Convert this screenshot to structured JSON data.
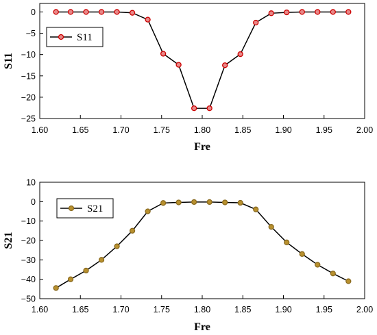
{
  "chart_data": [
    {
      "type": "line",
      "xlabel": "Fre",
      "ylabel": "S11",
      "xlim": [
        1.6,
        2.0
      ],
      "ylim": [
        -25,
        2
      ],
      "xticks": [
        "1.60",
        "1.65",
        "1.70",
        "1.75",
        "1.80",
        "1.85",
        "1.90",
        "1.95",
        "2.00"
      ],
      "yticks": [
        "0",
        "−5",
        "−10",
        "−15",
        "−20",
        "−25"
      ],
      "legend_position": "top-left",
      "series": [
        {
          "name": "S11",
          "color": "#cc0000",
          "line_color": "#000000",
          "x": [
            1.62,
            1.638,
            1.657,
            1.676,
            1.695,
            1.714,
            1.733,
            1.752,
            1.771,
            1.79,
            1.809,
            1.828,
            1.847,
            1.866,
            1.885,
            1.904,
            1.923,
            1.942,
            1.961,
            1.98
          ],
          "values": [
            0,
            0,
            0,
            0,
            0,
            -0.2,
            -1.8,
            -9.8,
            -12.4,
            -22.6,
            -22.6,
            -12.5,
            -9.9,
            -2.5,
            -0.3,
            -0.1,
            0,
            0,
            0,
            0
          ]
        }
      ]
    },
    {
      "type": "line",
      "xlabel": "Fre",
      "ylabel": "S21",
      "xlim": [
        1.6,
        2.0
      ],
      "ylim": [
        -50,
        10
      ],
      "xticks": [
        "1.60",
        "1.65",
        "1.70",
        "1.75",
        "1.80",
        "1.85",
        "1.90",
        "1.95",
        "2.00"
      ],
      "yticks": [
        "10",
        "0",
        "−10",
        "−20",
        "−30",
        "−40",
        "−50"
      ],
      "legend_position": "top-left",
      "series": [
        {
          "name": "S21",
          "color": "#c8a040",
          "line_color": "#000000",
          "x": [
            1.62,
            1.638,
            1.657,
            1.676,
            1.695,
            1.714,
            1.733,
            1.752,
            1.771,
            1.79,
            1.809,
            1.828,
            1.847,
            1.866,
            1.885,
            1.904,
            1.923,
            1.942,
            1.961,
            1.98
          ],
          "values": [
            -44.5,
            -40,
            -35.5,
            -30,
            -23,
            -15,
            -5,
            -0.7,
            -0.4,
            -0.2,
            -0.2,
            -0.4,
            -0.6,
            -4,
            -13,
            -21,
            -27,
            -32.5,
            -37,
            -41
          ]
        }
      ]
    }
  ]
}
